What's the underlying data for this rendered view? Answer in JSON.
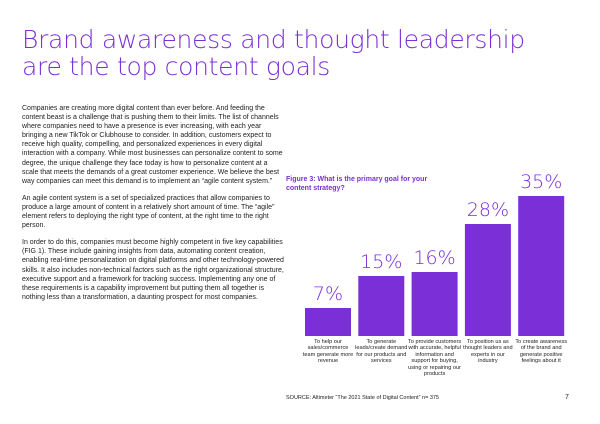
{
  "page": {
    "title_lines": [
      "Brand awareness and thought leadership",
      "are the top content goals"
    ],
    "paragraphs": [
      "Companies are creating more digital content than ever before. And feeding the content beast is a challenge that is pushing them to their limits. The list of channels where companies need to have a presence is ever increasing, with each year bringing a new TikTok or Clubhouse to consider. In addition, customers expect to receive high quality, compelling, and personalized experiences in every digital interaction with a company. While most businesses can personalize content to some degree, the unique challenge they face today is how to personalize content at a scale that meets the demands of a great customer experience. We believe the best way companies can meet this demand is to implement an “agile content system.”",
      "An agile content system is a set of specialized practices that allow companies to produce a large amount of content in a relatively short amount of time. The “agile” element refers to deploying the right type of content, at the right time to the right person.",
      "In order to do this, companies must become highly competent in five key capabilities (FIG 1). These include gaining insights from data, automating content creation, enabling real-time personalization on digital platforms and other technology-powered skills. It also includes non-technical factors such as the right organizational structure, executive support and a framework for tracking success. Implementing any one of these requirements is a capability improvement but putting them all together is nothing less than a transformation, a daunting prospect for most companies."
    ],
    "figure_caption": "Figure 3: What is the primary goal for your content strategy?",
    "source": "SOURCE: Altimeter “The 2021 State of Digital Content” n= 375",
    "page_number": "7",
    "accent_color": "#7b2fd6"
  },
  "chart_data": {
    "type": "bar",
    "categories": [
      "To help our sales/commerce team generate more revenue",
      "To generate leads/create demand for our products and services",
      "To provide customers with accurate, helpful information and support for buying, using or repairing our products",
      "To position us as thought leaders and experts in our industry",
      "To create awareness of the brand and generate positive feelings about it"
    ],
    "values": [
      7,
      15,
      16,
      28,
      35
    ],
    "value_labels": [
      "7%",
      "15%",
      "16%",
      "28%",
      "35%"
    ],
    "ylim": [
      0,
      35
    ],
    "bar_color": "#7b2fd6",
    "title": "Figure 3: What is the primary goal for your content strategy?",
    "xlabel": "",
    "ylabel": "",
    "grid": false,
    "legend": "none"
  }
}
